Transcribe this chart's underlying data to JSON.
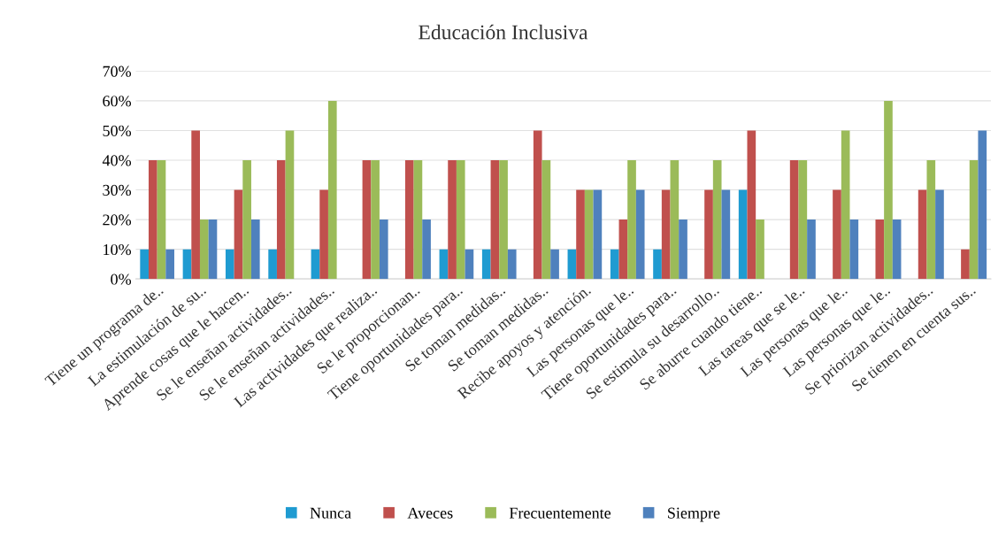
{
  "chart_data": {
    "type": "bar",
    "title": "Educación Inclusiva",
    "categories": [
      "Tiene un programa de..",
      "La estimulación de su..",
      "Aprende cosas que le hacen..",
      "Se le enseñan actividades..",
      "Se le enseñan actividades..",
      "Las actividades que realiza..",
      "Se le proporcionan..",
      "Tiene oportunidades para..",
      "Se toman medidas..",
      "Se toman medidas..",
      "Recibe apoyos y atención.",
      "Las personas que le..",
      "Tiene oportunidades para..",
      "Se estimula su desarrollo..",
      "Se aburre cuando tiene..",
      "Las tareas que se le..",
      "Las personas que le..",
      "Las personas que le..",
      "Se priorizan actividades..",
      "Se tienen en cuenta sus.."
    ],
    "series": [
      {
        "name": "Nunca",
        "color": "#1f9bd1",
        "values": [
          10,
          10,
          10,
          10,
          10,
          0,
          0,
          10,
          10,
          0,
          10,
          10,
          10,
          0,
          30,
          0,
          0,
          0,
          0,
          0
        ]
      },
      {
        "name": "Aveces",
        "color": "#c0504d",
        "values": [
          40,
          50,
          30,
          40,
          30,
          40,
          40,
          40,
          40,
          50,
          30,
          20,
          30,
          30,
          50,
          40,
          30,
          20,
          30,
          10
        ]
      },
      {
        "name": "Frecuentemente",
        "color": "#9bbb59",
        "values": [
          40,
          20,
          40,
          50,
          60,
          40,
          40,
          40,
          40,
          40,
          30,
          40,
          40,
          40,
          20,
          40,
          50,
          60,
          40,
          40
        ]
      },
      {
        "name": "Siempre",
        "color": "#4f81bd",
        "values": [
          10,
          20,
          20,
          0,
          0,
          20,
          20,
          10,
          10,
          10,
          30,
          30,
          20,
          30,
          0,
          20,
          20,
          20,
          30,
          50
        ]
      }
    ],
    "ylim": [
      0,
      70
    ],
    "yticks": [
      {
        "value": 0,
        "label": "0%"
      },
      {
        "value": 10,
        "label": "10%"
      },
      {
        "value": 20,
        "label": "20%"
      },
      {
        "value": 30,
        "label": "30%"
      },
      {
        "value": 40,
        "label": "40%"
      },
      {
        "value": 50,
        "label": "50%"
      },
      {
        "value": 60,
        "label": "60%"
      },
      {
        "value": 70,
        "label": "70%"
      }
    ],
    "grid": "y",
    "legend": "bottom"
  }
}
